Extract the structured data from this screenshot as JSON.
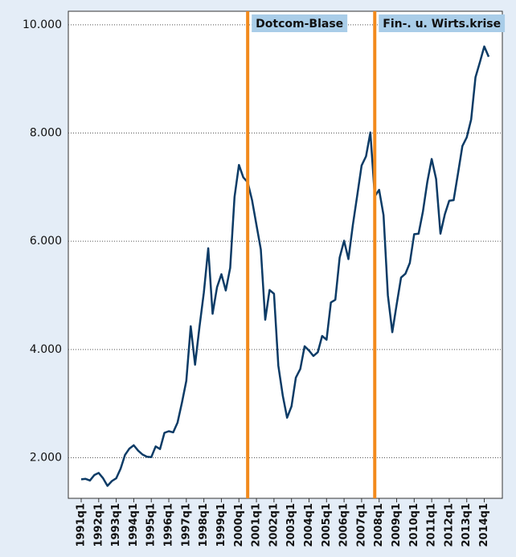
{
  "chart_data": {
    "type": "line",
    "categories": [
      "1991q1",
      null,
      null,
      null,
      "1992q1",
      null,
      null,
      null,
      "1993q1",
      null,
      null,
      null,
      "1994q1",
      null,
      null,
      null,
      "1995q1",
      null,
      null,
      null,
      "1996q1",
      null,
      null,
      null,
      "1997q1",
      null,
      null,
      null,
      "1998q1",
      null,
      null,
      null,
      "1999q1",
      null,
      null,
      null,
      "2000q1",
      null,
      null,
      null,
      "2001q1",
      null,
      null,
      null,
      "2002q1",
      null,
      null,
      null,
      "2003q1",
      null,
      null,
      null,
      "2004q1",
      null,
      null,
      null,
      "2005q1",
      null,
      null,
      null,
      "2006q1",
      null,
      null,
      null,
      "2007q1",
      null,
      null,
      null,
      "2008q1",
      null,
      null,
      null,
      "2009q1",
      null,
      null,
      null,
      "2010q1",
      null,
      null,
      null,
      "2011q1",
      null,
      null,
      null,
      "2012q1",
      null,
      null,
      null,
      "2013q1",
      null,
      null,
      null,
      "2014q1",
      null
    ],
    "series": [
      {
        "color": "#0c3b66",
        "values": [
          1600,
          1610,
          1580,
          1680,
          1720,
          1620,
          1480,
          1570,
          1620,
          1800,
          2050,
          2170,
          2230,
          2130,
          2060,
          2020,
          2010,
          2210,
          2160,
          2460,
          2490,
          2470,
          2650,
          3020,
          3420,
          4430,
          3720,
          4420,
          5050,
          5870,
          4660,
          5150,
          5390,
          5090,
          5510,
          6820,
          7410,
          7180,
          7090,
          6760,
          6300,
          5850,
          4550,
          5100,
          5030,
          3700,
          3150,
          2740,
          2950,
          3480,
          3640,
          4060,
          3980,
          3880,
          3950,
          4250,
          4180,
          4870,
          4920,
          5700,
          6010,
          5670,
          6300,
          6850,
          7400,
          7570,
          8010,
          6830,
          6950,
          6480,
          5000,
          4320,
          4830,
          5330,
          5400,
          5600,
          6130,
          6140,
          6550,
          7100,
          7520,
          7150,
          6140,
          6500,
          6750,
          6760,
          7250,
          7760,
          7920,
          8250,
          9030,
          9310,
          9600,
          9410
        ]
      }
    ],
    "ylim": [
      1250,
      10250
    ],
    "yticks": [
      {
        "value": 2000,
        "label": "2.000"
      },
      {
        "value": 4000,
        "label": "4.000"
      },
      {
        "value": 6000,
        "label": "6.000"
      },
      {
        "value": 8000,
        "label": "8.000"
      },
      {
        "value": 10000,
        "label": "10.000"
      }
    ],
    "grid": true,
    "annotations": [
      {
        "label": "Dotcom-Blase",
        "x": 38,
        "color": "#f28a1c"
      },
      {
        "label": "Fin-. u. Wirts.krise",
        "x": 67,
        "color": "#f28a1c"
      }
    ]
  }
}
